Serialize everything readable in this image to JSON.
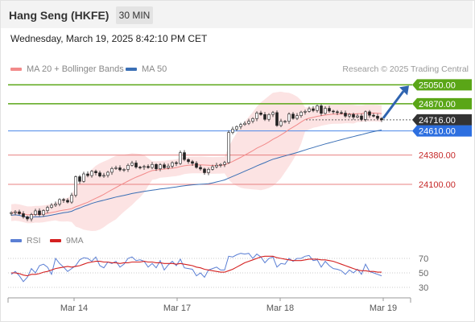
{
  "header": {
    "instrument": "Hang Seng (HKFE)",
    "timeframe": "30 MIN"
  },
  "datetime": "Wednesday, March 19, 2025 8:42:10 PM CET",
  "legend": {
    "ma20_label": "MA 20 + Bollinger Bands",
    "ma50_label": "MA 50",
    "credit": "Research © 2025 Trading Central"
  },
  "rsi_legend": {
    "rsi_label": "RSI",
    "ma_label": "9MA"
  },
  "colors": {
    "ma20": "#f28a8a",
    "ma50": "#3a6fb5",
    "rsi": "#5b7fd4",
    "rsi_ma": "#d42020",
    "resistance": "#5aa617",
    "support": "#e88080",
    "pivot": "#4a86e8",
    "last": "#333333"
  },
  "chart_data": [
    {
      "type": "candlestick",
      "x_labels": [
        "Mar 14",
        "Mar 17",
        "Mar 18",
        "Mar 19"
      ],
      "ylim": [
        23670,
        25130
      ],
      "close": [
        23830,
        23838,
        23820,
        23790,
        23770,
        23812,
        23847,
        23811,
        23850,
        23880,
        23901,
        23912,
        23955,
        23948,
        23931,
        23996,
        24173,
        24129,
        24200,
        24184,
        24225,
        24210,
        24179,
        24186,
        24216,
        24251,
        24258,
        24239,
        24243,
        24282,
        24304,
        24265,
        24263,
        24271,
        24261,
        24290,
        24249,
        24287,
        24259,
        24274,
        24307,
        24299,
        24403,
        24337,
        24317,
        24301,
        24262,
        24247,
        24212,
        24244,
        24268,
        24282,
        24290,
        24308,
        24595,
        24627,
        24651,
        24671,
        24683,
        24703,
        24728,
        24782,
        24767,
        24721,
        24767,
        24785,
        24662,
        24702,
        24702,
        24771,
        24730,
        24756,
        24790,
        24797,
        24822,
        24805,
        24850,
        24778,
        24826,
        24800,
        24793,
        24785,
        24780,
        24752,
        24768,
        24742,
        24753,
        24720,
        24793,
        24760,
        24751,
        24730,
        24716
      ],
      "levels": [
        {
          "value": 25050.0,
          "label": "25050.00",
          "kind": "resistance"
        },
        {
          "value": 24870.0,
          "label": "24870.00",
          "kind": "resistance"
        },
        {
          "value": 24716.0,
          "label": "24716.00",
          "kind": "last"
        },
        {
          "value": 24610.0,
          "label": "24610.00",
          "kind": "pivot"
        },
        {
          "value": 24380.0,
          "label": "24380.00",
          "kind": "support"
        },
        {
          "value": 24100.0,
          "label": "24100.00",
          "kind": "support"
        }
      ],
      "series": [
        {
          "name": "MA 20 + Bollinger Bands"
        },
        {
          "name": "MA 50"
        }
      ]
    },
    {
      "type": "line",
      "ylim": [
        20,
        80
      ],
      "y_ticks": [
        70,
        50,
        30
      ],
      "series": [
        {
          "name": "RSI",
          "values": [
            48,
            52,
            46,
            38,
            44,
            56,
            50,
            60,
            62,
            58,
            48,
            70,
            63,
            58,
            52,
            56,
            60,
            68,
            71,
            70,
            66,
            72,
            60,
            57,
            65,
            63,
            66,
            58,
            62,
            70,
            72,
            67,
            68,
            66,
            58,
            63,
            57,
            67,
            54,
            61,
            66,
            60,
            69,
            57,
            56,
            55,
            46,
            50,
            44,
            54,
            56,
            58,
            54,
            54,
            73,
            72,
            75,
            77,
            76,
            77,
            70,
            76,
            72,
            64,
            70,
            72,
            58,
            63,
            62,
            70,
            66,
            70,
            70,
            73,
            74,
            67,
            68,
            58,
            66,
            60,
            56,
            55,
            53,
            48,
            54,
            50,
            55,
            48,
            62,
            52,
            50,
            48,
            46
          ]
        },
        {
          "name": "9MA",
          "values": [
            50,
            50,
            49,
            47,
            46,
            48,
            48,
            49,
            51,
            52,
            54,
            56,
            57,
            58,
            59,
            58,
            59,
            60,
            62,
            64,
            65,
            66,
            66,
            65,
            65,
            64,
            64,
            63,
            64,
            64,
            65,
            65,
            65,
            66,
            65,
            65,
            64,
            64,
            63,
            63,
            63,
            62,
            63,
            62,
            61,
            60,
            58,
            57,
            55,
            54,
            53,
            52,
            51,
            51,
            53,
            55,
            58,
            61,
            64,
            66,
            68,
            70,
            72,
            73,
            73,
            73,
            71,
            70,
            69,
            68,
            67,
            67,
            67,
            68,
            69,
            69,
            69,
            68,
            68,
            67,
            66,
            64,
            62,
            60,
            58,
            56,
            54,
            53,
            53,
            52,
            52,
            51,
            51
          ]
        }
      ]
    }
  ]
}
